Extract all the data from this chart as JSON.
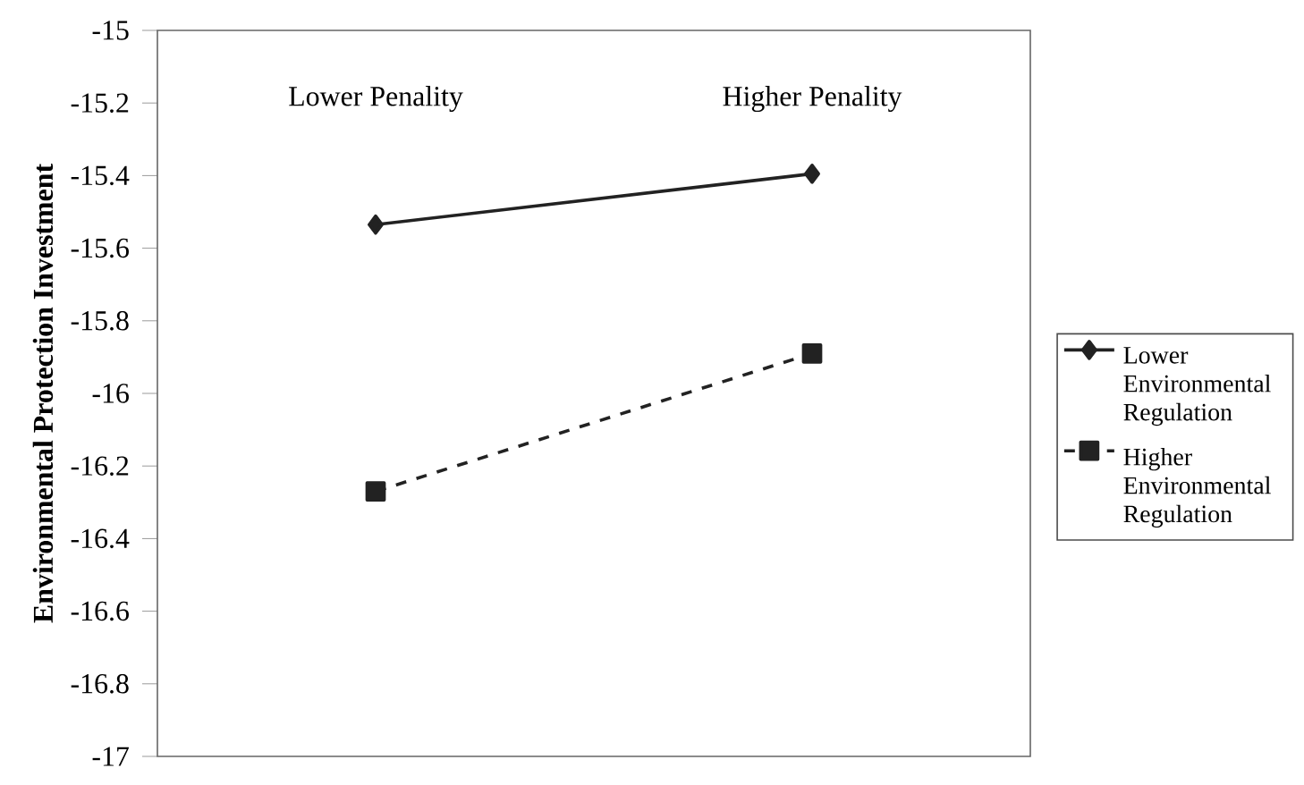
{
  "chart_data": {
    "type": "line",
    "ylabel": "Environmental Protection Investment",
    "categories": [
      "Lower Penality",
      "Higher Penality"
    ],
    "series": [
      {
        "name": "Lower Environmental Regulation",
        "color": "#222222",
        "values": [
          -15.535,
          -15.395
        ],
        "marker": "diamond",
        "line_style": "solid"
      },
      {
        "name": "Higher Environmental Regulation",
        "color": "#222222",
        "values": [
          -16.27,
          -15.89
        ],
        "marker": "square",
        "line_style": "dashed"
      }
    ],
    "ylim": [
      -17,
      -15
    ],
    "yticks": [
      -17,
      -16.8,
      -16.6,
      -16.4,
      -16.2,
      -16,
      -15.8,
      -15.6,
      -15.4,
      -15.2,
      -15
    ],
    "grid": false,
    "legend": "right"
  }
}
